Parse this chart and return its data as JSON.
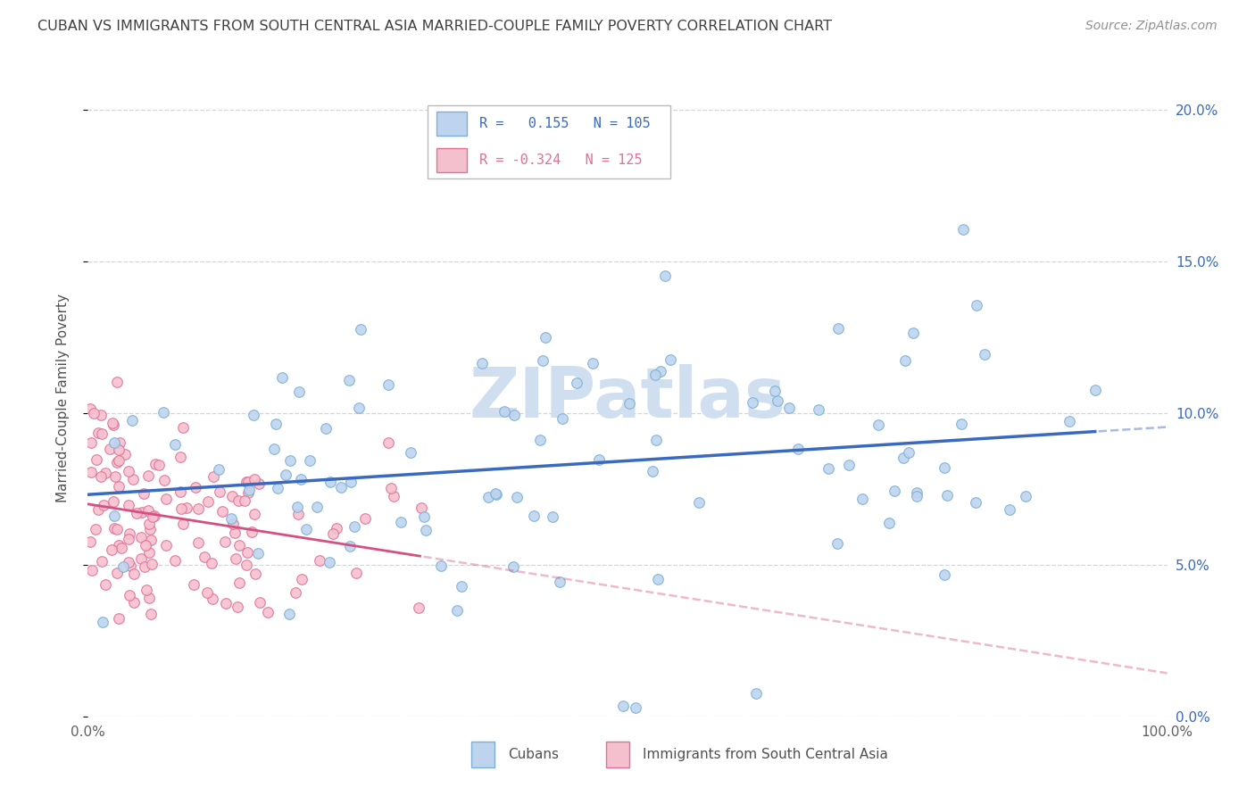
{
  "title": "CUBAN VS IMMIGRANTS FROM SOUTH CENTRAL ASIA MARRIED-COUPLE FAMILY POVERTY CORRELATION CHART",
  "source": "Source: ZipAtlas.com",
  "ylabel": "Married-Couple Family Poverty",
  "xlim": [
    0,
    1.0
  ],
  "ylim": [
    0,
    0.21
  ],
  "ytick_values": [
    0.0,
    0.05,
    0.1,
    0.15,
    0.2
  ],
  "xtick_values": [
    0.0,
    1.0
  ],
  "cuban_R": 0.155,
  "cuban_N": 105,
  "asia_R": -0.324,
  "asia_N": 125,
  "cuban_color": "#bed4ee",
  "cuban_edge_color": "#7bafd8",
  "asia_color": "#f5c0ce",
  "asia_edge_color": "#e07098",
  "cuban_line_color": "#3a6abf",
  "asia_line_color": "#d45080",
  "watermark_color": "#d0dff0",
  "background_color": "#ffffff",
  "grid_color": "#c8d8e8",
  "title_color": "#404040",
  "source_color": "#909090",
  "legend_label_cuban": "Cubans",
  "legend_label_asia": "Immigrants from South Central Asia"
}
